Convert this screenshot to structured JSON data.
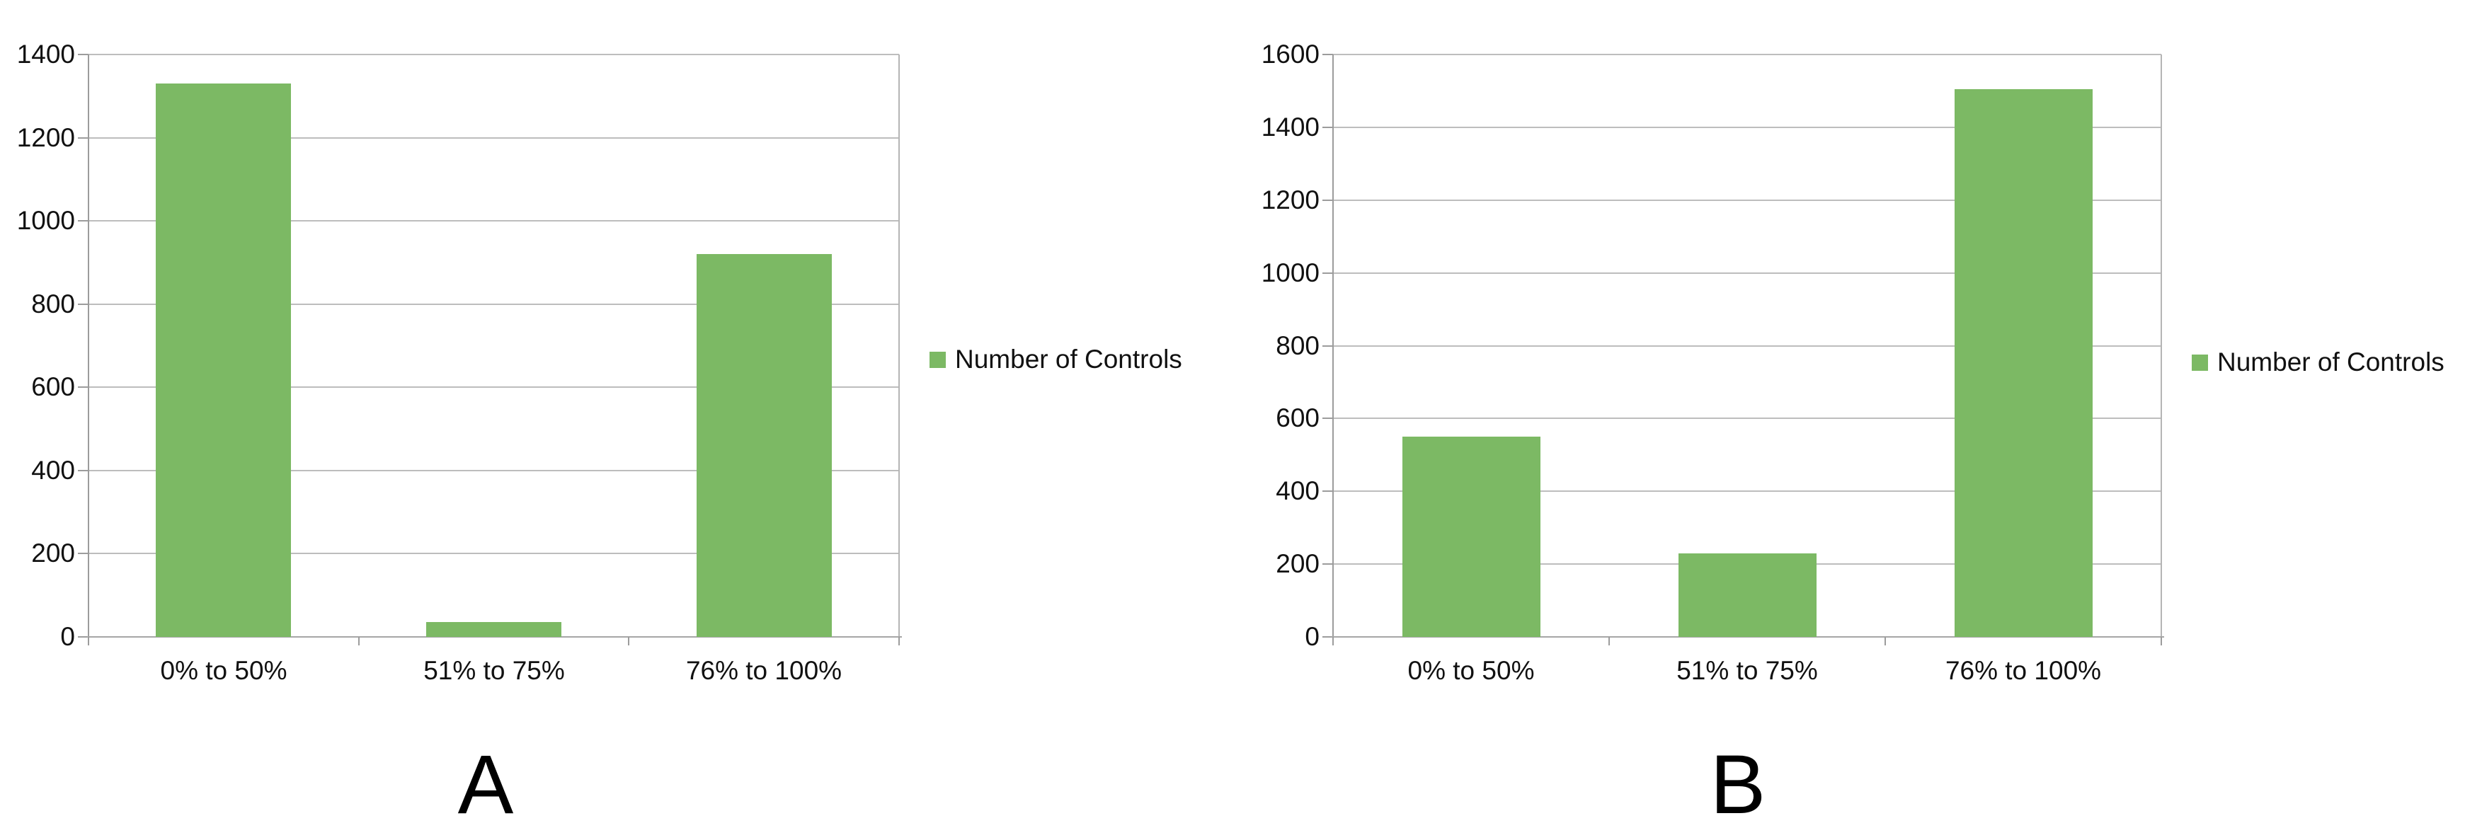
{
  "figure": {
    "background": "#ffffff",
    "bar_color": "#7cb964",
    "grid_color": "#bdbdbd",
    "axis_color": "#9c9c9c"
  },
  "chart_data": [
    {
      "type": "bar",
      "caption": "A",
      "title": "",
      "xlabel": "",
      "ylabel": "",
      "categories": [
        "0% to 50%",
        "51% to 75%",
        "76% to 100%"
      ],
      "series": [
        {
          "name": "Number of Controls",
          "values": [
            1330,
            35,
            920
          ],
          "color": "#7cb964"
        }
      ],
      "ylim": [
        0,
        1400
      ],
      "ystep": 200,
      "grid": true,
      "legend_position": "right"
    },
    {
      "type": "bar",
      "caption": "B",
      "title": "",
      "xlabel": "",
      "ylabel": "",
      "categories": [
        "0% to 50%",
        "51% to 75%",
        "76% to 100%"
      ],
      "series": [
        {
          "name": "Number of Controls",
          "values": [
            550,
            230,
            1505
          ],
          "color": "#7cb964"
        }
      ],
      "ylim": [
        0,
        1600
      ],
      "ystep": 200,
      "grid": true,
      "legend_position": "right"
    }
  ]
}
